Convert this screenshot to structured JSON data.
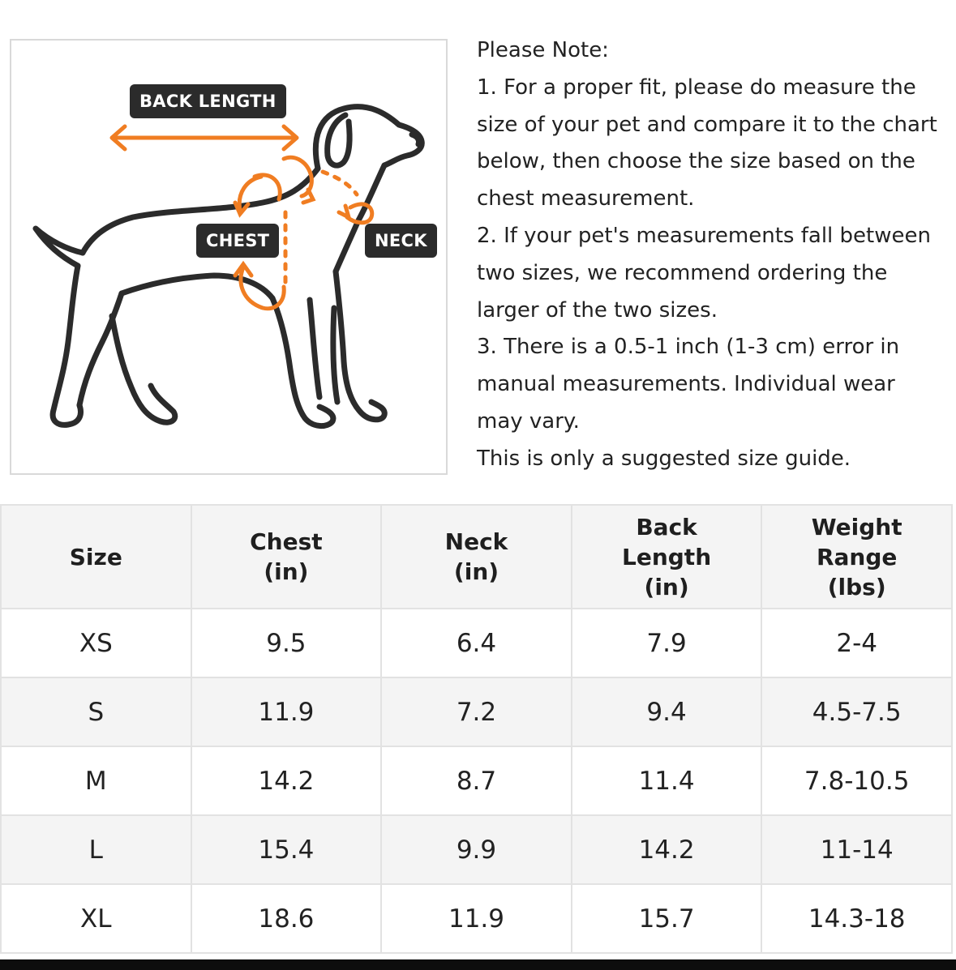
{
  "diagram": {
    "labels": {
      "back_length": "BACK LENGTH",
      "chest": "CHEST",
      "neck": "NECK"
    },
    "colors": {
      "outline": "#2b2b2b",
      "accent": "#f07d22"
    }
  },
  "notes": {
    "lines": [
      "Please Note:",
      "1. For a proper fit, please do measure the",
      "size of your pet and compare it to the chart",
      "below, then choose the size based on the",
      "chest measurement.",
      "2. If your pet's measurements fall between",
      "two sizes, we recommend ordering the",
      "larger of the two sizes.",
      "3. There is a 0.5-1 inch (1-3 cm) error in",
      "manual measurements. Individual wear",
      "may vary.",
      "This is only a suggested size guide."
    ]
  },
  "table": {
    "headers": [
      [
        "Size"
      ],
      [
        "Chest",
        "(in)"
      ],
      [
        "Neck",
        "(in)"
      ],
      [
        "Back",
        "Length",
        "(in)"
      ],
      [
        "Weight",
        "Range",
        "(lbs)"
      ]
    ],
    "rows": [
      [
        "XS",
        "9.5",
        "6.4",
        "7.9",
        "2-4"
      ],
      [
        "S",
        "11.9",
        "7.2",
        "9.4",
        "4.5-7.5"
      ],
      [
        "M",
        "14.2",
        "8.7",
        "11.4",
        "7.8-10.5"
      ],
      [
        "L",
        "15.4",
        "9.9",
        "14.2",
        "11-14"
      ],
      [
        "XL",
        "18.6",
        "11.9",
        "15.7",
        "14.3-18"
      ]
    ]
  }
}
